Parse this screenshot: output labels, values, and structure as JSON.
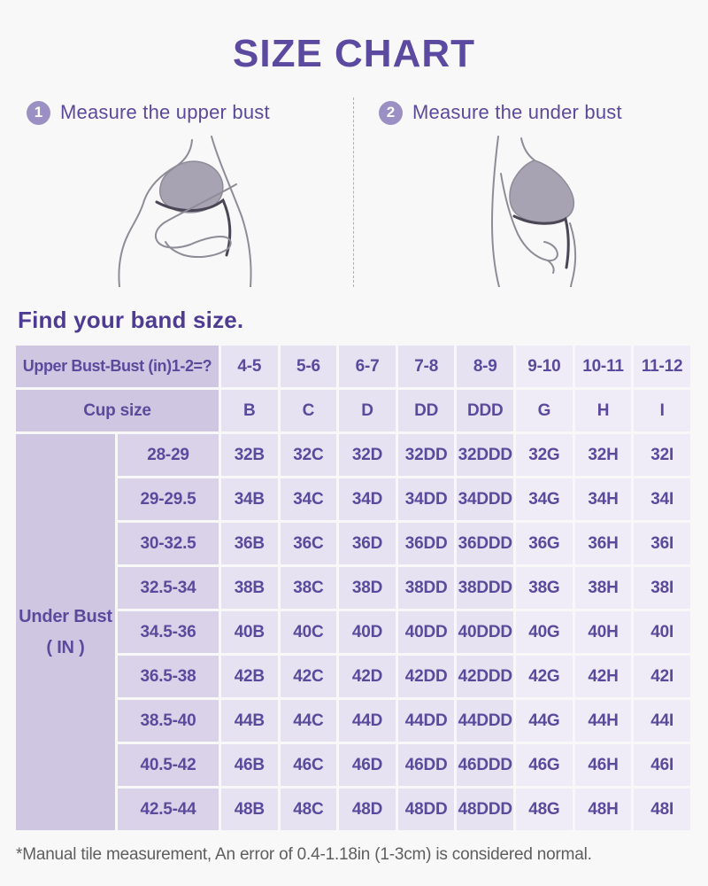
{
  "title": "SIZE CHART",
  "steps": [
    {
      "number": "1",
      "label": "Measure the upper bust"
    },
    {
      "number": "2",
      "label": "Measure the under bust"
    }
  ],
  "band_heading": "Find your band size.",
  "size_table": {
    "corner_label": "Upper Bust-Bust (in)1-2=?",
    "bust_diff_ranges": [
      "4-5",
      "5-6",
      "6-7",
      "7-8",
      "8-9",
      "9-10",
      "10-11",
      "11-12"
    ],
    "cup_label": "Cup size",
    "cup_sizes": [
      "B",
      "C",
      "D",
      "DD",
      "DDD",
      "G",
      "H",
      "I"
    ],
    "row_header": {
      "line1": "Under Bust",
      "line2": "( IN )"
    },
    "under_bust_ranges": [
      "28-29",
      "29-29.5",
      "30-32.5",
      "32.5-34",
      "34.5-36",
      "36.5-38",
      "38.5-40",
      "40.5-42",
      "42.5-44"
    ],
    "rows": [
      [
        "32B",
        "32C",
        "32D",
        "32DD",
        "32DDD",
        "32G",
        "32H",
        "32I"
      ],
      [
        "34B",
        "34C",
        "34D",
        "34DD",
        "34DDD",
        "34G",
        "34H",
        "34I"
      ],
      [
        "36B",
        "36C",
        "36D",
        "36DD",
        "36DDD",
        "36G",
        "36H",
        "36I"
      ],
      [
        "38B",
        "38C",
        "38D",
        "38DD",
        "38DDD",
        "38G",
        "38H",
        "38I"
      ],
      [
        "40B",
        "40C",
        "40D",
        "40DD",
        "40DDD",
        "40G",
        "40H",
        "40I"
      ],
      [
        "42B",
        "42C",
        "42D",
        "42DD",
        "42DDD",
        "42G",
        "42H",
        "42I"
      ],
      [
        "44B",
        "44C",
        "44D",
        "44DD",
        "44DDD",
        "44G",
        "44H",
        "44I"
      ],
      [
        "46B",
        "46C",
        "46D",
        "46DD",
        "46DDD",
        "46G",
        "46H",
        "46I"
      ],
      [
        "48B",
        "48C",
        "48D",
        "48DD",
        "48DDD",
        "48G",
        "48H",
        "48I"
      ]
    ]
  },
  "footnote": "*Manual tile measurement, An error of 0.4-1.18in (1-3cm) is considered normal.",
  "colors": {
    "title_text": "#5c4aa0",
    "accent_text": "#5a4a9c",
    "badge_fill": "#9b90c3",
    "header_cell": "#cfc7e2",
    "range_cell": "#d9d2e9",
    "data_cell": "#e6e2f1",
    "data_cell_light": "#efecf7",
    "divider": "#b3aad2",
    "footnote_text": "#5e5e5e",
    "page_background": "#f8f8f8",
    "bra_fill": "#a7a3b2",
    "tape_line": "#4a4656"
  }
}
